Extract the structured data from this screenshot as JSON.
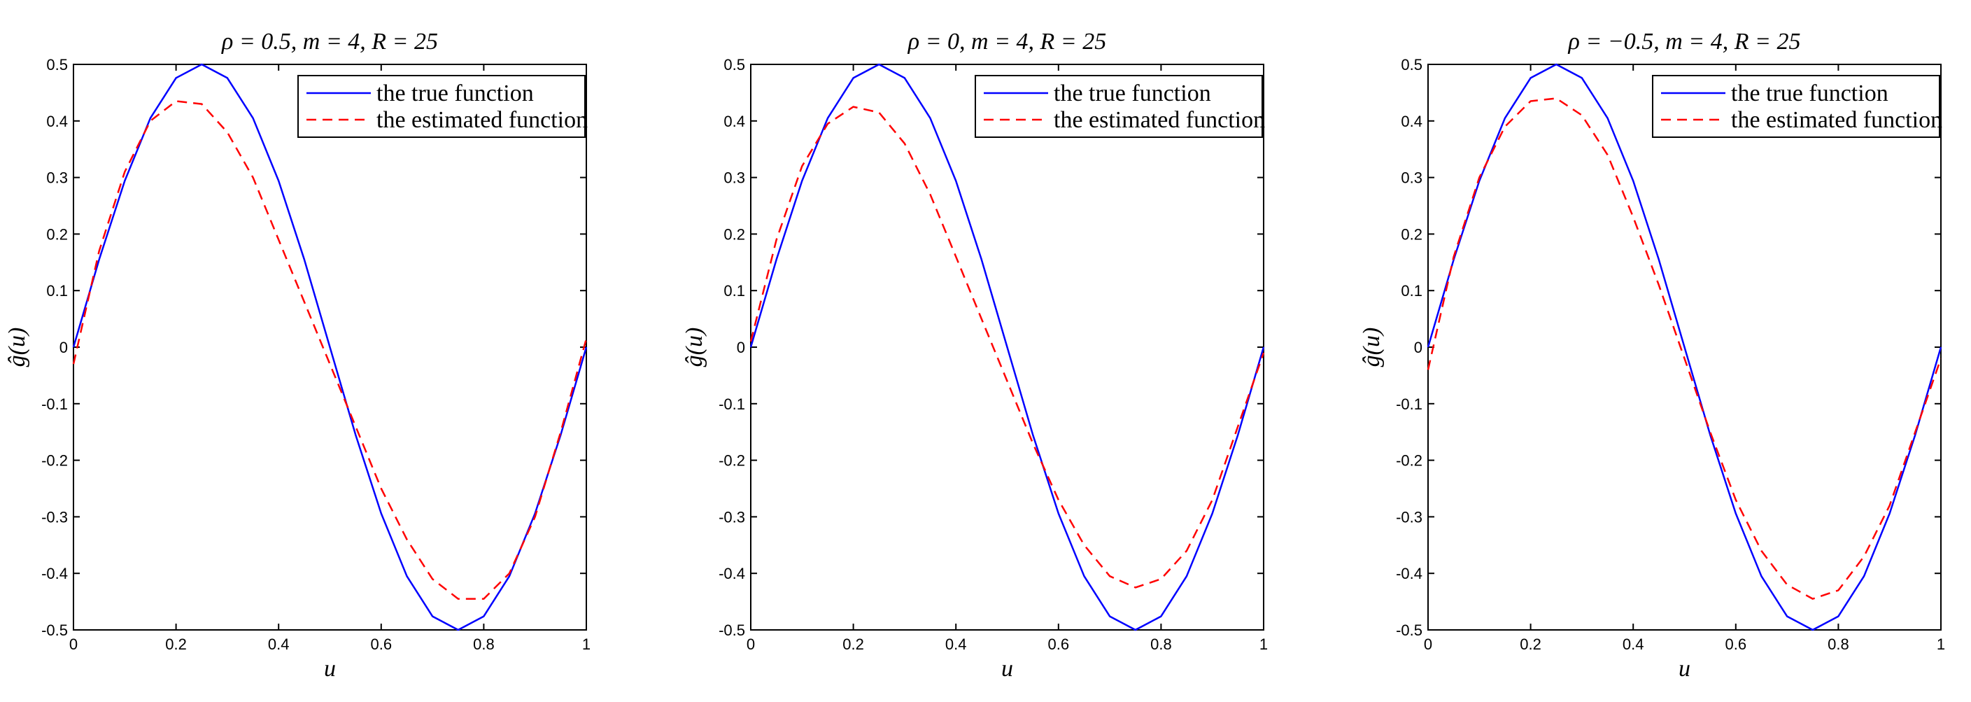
{
  "chart_data": [
    {
      "type": "line",
      "title": "ρ = 0.5, m = 4, R = 25",
      "xlabel": "u",
      "ylabel": "ĝ(u)",
      "xlim": [
        0,
        1
      ],
      "ylim": [
        -0.5,
        0.5
      ],
      "xticks": [
        0,
        0.2,
        0.4,
        0.6,
        0.8,
        1
      ],
      "yticks": [
        -0.5,
        -0.4,
        -0.3,
        -0.2,
        -0.1,
        0,
        0.1,
        0.2,
        0.3,
        0.4,
        0.5
      ],
      "xtick_labels": [
        "0",
        "0.2",
        "0.4",
        "0.6",
        "0.8",
        "1"
      ],
      "ytick_labels": [
        "-0.5",
        "-0.4",
        "-0.3",
        "-0.2",
        "-0.1",
        "0",
        "0.1",
        "0.2",
        "0.3",
        "0.4",
        "0.5"
      ],
      "legend": "top-right",
      "series": [
        {
          "name": "the true function",
          "color": "#0000ff",
          "style": "solid",
          "x": [
            0,
            0.05,
            0.1,
            0.15,
            0.2,
            0.25,
            0.3,
            0.35,
            0.4,
            0.45,
            0.5,
            0.55,
            0.6,
            0.65,
            0.7,
            0.75,
            0.8,
            0.85,
            0.9,
            0.95,
            1
          ],
          "y": [
            0,
            0.155,
            0.294,
            0.405,
            0.476,
            0.5,
            0.476,
            0.405,
            0.294,
            0.155,
            0,
            -0.155,
            -0.294,
            -0.405,
            -0.476,
            -0.5,
            -0.476,
            -0.405,
            -0.294,
            -0.155,
            0
          ]
        },
        {
          "name": "the estimated function",
          "color": "#ff0000",
          "style": "dashed",
          "x": [
            0,
            0.05,
            0.1,
            0.15,
            0.2,
            0.25,
            0.3,
            0.35,
            0.4,
            0.45,
            0.5,
            0.55,
            0.6,
            0.65,
            0.7,
            0.75,
            0.8,
            0.85,
            0.9,
            0.95,
            1
          ],
          "y": [
            -0.03,
            0.17,
            0.31,
            0.4,
            0.435,
            0.43,
            0.38,
            0.3,
            0.19,
            0.08,
            -0.03,
            -0.14,
            -0.25,
            -0.34,
            -0.41,
            -0.445,
            -0.445,
            -0.4,
            -0.3,
            -0.15,
            0.015
          ]
        }
      ]
    },
    {
      "type": "line",
      "title": "ρ = 0, m = 4, R = 25",
      "xlabel": "u",
      "ylabel": "ĝ(u)",
      "xlim": [
        0,
        1
      ],
      "ylim": [
        -0.5,
        0.5
      ],
      "xticks": [
        0,
        0.2,
        0.4,
        0.6,
        0.8,
        1
      ],
      "yticks": [
        -0.5,
        -0.4,
        -0.3,
        -0.2,
        -0.1,
        0,
        0.1,
        0.2,
        0.3,
        0.4,
        0.5
      ],
      "xtick_labels": [
        "0",
        "0.2",
        "0.4",
        "0.6",
        "0.8",
        "1"
      ],
      "ytick_labels": [
        "-0.5",
        "-0.4",
        "-0.3",
        "-0.2",
        "-0.1",
        "0",
        "0.1",
        "0.2",
        "0.3",
        "0.4",
        "0.5"
      ],
      "legend": "top-right",
      "series": [
        {
          "name": "the true function",
          "color": "#0000ff",
          "style": "solid",
          "x": [
            0,
            0.05,
            0.1,
            0.15,
            0.2,
            0.25,
            0.3,
            0.35,
            0.4,
            0.45,
            0.5,
            0.55,
            0.6,
            0.65,
            0.7,
            0.75,
            0.8,
            0.85,
            0.9,
            0.95,
            1
          ],
          "y": [
            0,
            0.155,
            0.294,
            0.405,
            0.476,
            0.5,
            0.476,
            0.405,
            0.294,
            0.155,
            0,
            -0.155,
            -0.294,
            -0.405,
            -0.476,
            -0.5,
            -0.476,
            -0.405,
            -0.294,
            -0.155,
            0
          ]
        },
        {
          "name": "the estimated function",
          "color": "#ff0000",
          "style": "dashed",
          "x": [
            0,
            0.05,
            0.1,
            0.15,
            0.2,
            0.25,
            0.3,
            0.35,
            0.4,
            0.45,
            0.5,
            0.55,
            0.6,
            0.65,
            0.7,
            0.75,
            0.8,
            0.85,
            0.9,
            0.95,
            1
          ],
          "y": [
            0.01,
            0.19,
            0.32,
            0.395,
            0.425,
            0.415,
            0.36,
            0.27,
            0.16,
            0.05,
            -0.06,
            -0.17,
            -0.27,
            -0.35,
            -0.405,
            -0.425,
            -0.41,
            -0.36,
            -0.27,
            -0.14,
            -0.01
          ]
        }
      ]
    },
    {
      "type": "line",
      "title": "ρ = −0.5, m = 4, R = 25",
      "xlabel": "u",
      "ylabel": "ĝ(u)",
      "xlim": [
        0,
        1
      ],
      "ylim": [
        -0.5,
        0.5
      ],
      "xticks": [
        0,
        0.2,
        0.4,
        0.6,
        0.8,
        1
      ],
      "yticks": [
        -0.5,
        -0.4,
        -0.3,
        -0.2,
        -0.1,
        0,
        0.1,
        0.2,
        0.3,
        0.4,
        0.5
      ],
      "xtick_labels": [
        "0",
        "0.2",
        "0.4",
        "0.6",
        "0.8",
        "1"
      ],
      "ytick_labels": [
        "-0.5",
        "-0.4",
        "-0.3",
        "-0.2",
        "-0.1",
        "0",
        "0.1",
        "0.2",
        "0.3",
        "0.4",
        "0.5"
      ],
      "legend": "top-right",
      "series": [
        {
          "name": "the true function",
          "color": "#0000ff",
          "style": "solid",
          "x": [
            0,
            0.05,
            0.1,
            0.15,
            0.2,
            0.25,
            0.3,
            0.35,
            0.4,
            0.45,
            0.5,
            0.55,
            0.6,
            0.65,
            0.7,
            0.75,
            0.8,
            0.85,
            0.9,
            0.95,
            1
          ],
          "y": [
            0,
            0.155,
            0.294,
            0.405,
            0.476,
            0.5,
            0.476,
            0.405,
            0.294,
            0.155,
            0,
            -0.155,
            -0.294,
            -0.405,
            -0.476,
            -0.5,
            -0.476,
            -0.405,
            -0.294,
            -0.155,
            0
          ]
        },
        {
          "name": "the estimated function",
          "color": "#ff0000",
          "style": "dashed",
          "x": [
            0,
            0.05,
            0.1,
            0.15,
            0.2,
            0.25,
            0.3,
            0.35,
            0.4,
            0.45,
            0.5,
            0.55,
            0.6,
            0.65,
            0.7,
            0.75,
            0.8,
            0.85,
            0.9,
            0.95,
            1
          ],
          "y": [
            -0.04,
            0.16,
            0.3,
            0.39,
            0.435,
            0.44,
            0.41,
            0.34,
            0.23,
            0.11,
            -0.02,
            -0.15,
            -0.27,
            -0.36,
            -0.42,
            -0.445,
            -0.43,
            -0.37,
            -0.28,
            -0.15,
            -0.02
          ]
        }
      ]
    }
  ]
}
